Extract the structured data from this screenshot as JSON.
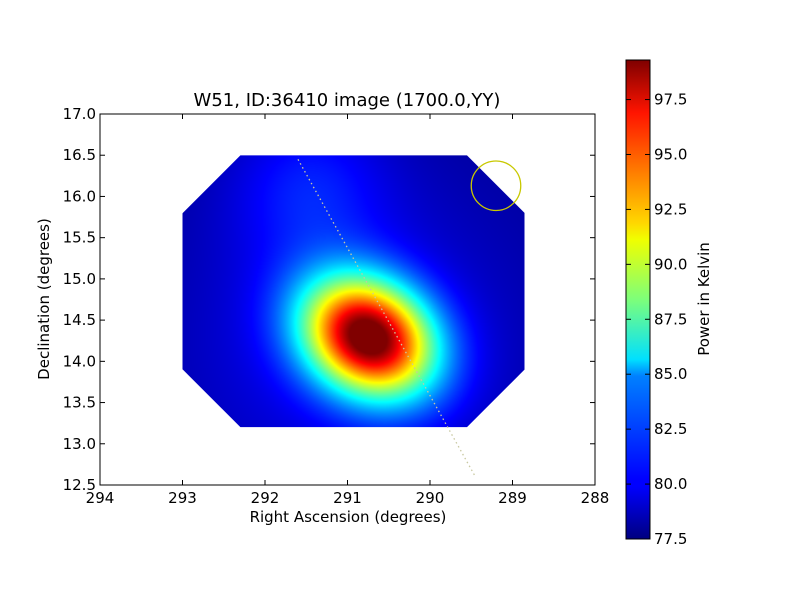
{
  "chart_data": {
    "type": "heatmap",
    "title": "W51, ID:36410 image (1700.0,YY)",
    "xlabel": "Right Ascension (degrees)",
    "ylabel": "Declination (degrees)",
    "xlim": [
      294,
      288
    ],
    "ylim": [
      12.5,
      17.0
    ],
    "x_ticks": [
      "294",
      "293",
      "292",
      "291",
      "290",
      "289",
      "288"
    ],
    "y_ticks": [
      "12.5",
      "13.0",
      "13.5",
      "14.0",
      "14.5",
      "15.0",
      "15.5",
      "16.0",
      "16.5",
      "17.0"
    ],
    "x_tick_values": [
      294,
      293,
      292,
      291,
      290,
      289,
      288
    ],
    "y_tick_values": [
      12.5,
      13.0,
      13.5,
      14.0,
      14.5,
      15.0,
      15.5,
      16.0,
      16.5,
      17.0
    ],
    "map_region": {
      "x_range": [
        293.0,
        288.85
      ],
      "y_range": [
        13.2,
        16.5
      ]
    },
    "peak": {
      "ra": 290.75,
      "dec": 14.3,
      "value": 99.0
    },
    "background_value": 78.0,
    "colormap": "jet",
    "colorbar": {
      "label": "Power in Kelvin",
      "range": [
        77.5,
        99.3
      ],
      "ticks": [
        "77.5",
        "80.0",
        "82.5",
        "85.0",
        "87.5",
        "90.0",
        "92.5",
        "95.0",
        "97.5"
      ],
      "tick_values": [
        77.5,
        80.0,
        82.5,
        85.0,
        87.5,
        90.0,
        92.5,
        95.0,
        97.5
      ]
    },
    "beam_circle": {
      "ra": 289.2,
      "dec": 16.13,
      "radius_deg": 0.3,
      "color": "#c8c800"
    },
    "track_line": {
      "from": [
        291.6,
        16.45
      ],
      "to": [
        289.45,
        12.6
      ],
      "style": "dotted",
      "color": "#c8c8a0"
    },
    "grid": false,
    "legend": "none"
  }
}
